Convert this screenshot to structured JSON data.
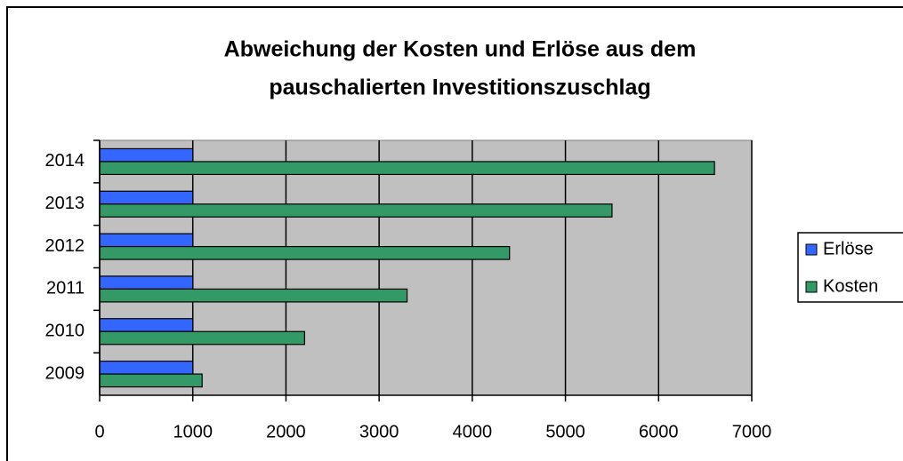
{
  "chart_data": {
    "type": "bar",
    "orientation": "horizontal",
    "title": [
      "Abweichung der Kosten und Erlöse aus dem",
      "pauschalierten Investitionszuschlag"
    ],
    "categories": [
      "2009",
      "2010",
      "2011",
      "2012",
      "2013",
      "2014"
    ],
    "series": [
      {
        "name": "Erlöse",
        "color": "#3366ff",
        "values": [
          1000,
          1000,
          1000,
          1000,
          1000,
          1000
        ]
      },
      {
        "name": "Kosten",
        "color": "#339966",
        "values": [
          1100,
          2200,
          3300,
          4400,
          5500,
          6600
        ]
      }
    ],
    "xlim": [
      0,
      7000
    ],
    "xticks": [
      0,
      1000,
      2000,
      3000,
      4000,
      5000,
      6000,
      7000
    ],
    "grid": true,
    "legend": "right"
  }
}
